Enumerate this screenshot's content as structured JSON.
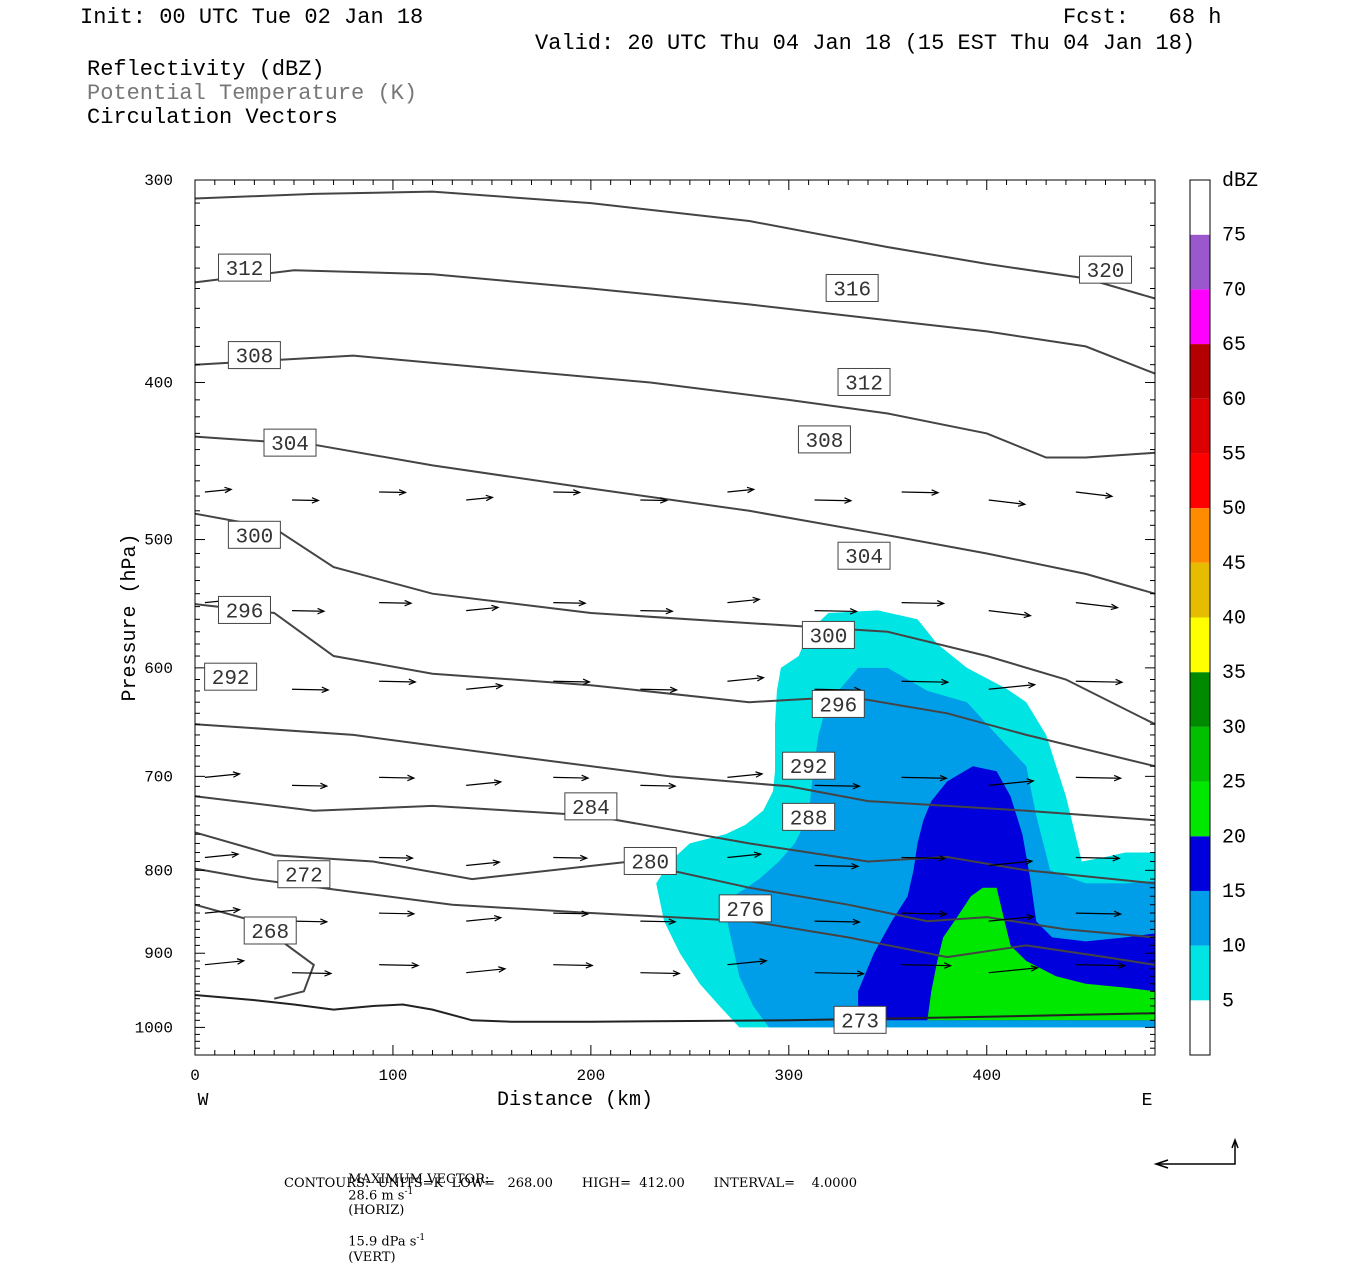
{
  "header": {
    "init": "Init: 00 UTC Tue 02 Jan 18",
    "fcst": "Fcst:   68 h",
    "valid": "Valid: 20 UTC Thu 04 Jan 18 (15 EST Thu 04 Jan 18)",
    "field1": "Reflectivity (dBZ)",
    "field2": "Potential Temperature (K)",
    "field3": "Circulation Vectors"
  },
  "footer": {
    "max_vector_label": "MAXIMUM VECTOR:",
    "horiz_value": "28.6 m s",
    "horiz_exp": "-1",
    "horiz_tag": "(HORIZ)",
    "vert_value": "15.9 dPa s",
    "vert_exp": "-1",
    "vert_tag": "(VERT)",
    "contours": "CONTOURS:  UNITS=K  LOW=   268.00       HIGH=  412.00       INTERVAL=    4.0000"
  },
  "chart_data": {
    "type": "cross-section",
    "xlabel": "Distance (km)",
    "ylabel": "Pressure (hPa)",
    "x_end_labels": [
      "W",
      "E"
    ],
    "xlim": [
      0,
      485
    ],
    "ylim": [
      300,
      1040
    ],
    "y_log_scale": true,
    "xticks": [
      0,
      100,
      200,
      300,
      400
    ],
    "yticks": [
      300,
      400,
      500,
      600,
      700,
      800,
      900,
      1000
    ],
    "colorbar": {
      "title": "dBZ",
      "levels": [
        5,
        10,
        15,
        20,
        25,
        30,
        35,
        40,
        45,
        50,
        55,
        60,
        65,
        70,
        75
      ],
      "colors": [
        "#ffffff",
        "#00e4e4",
        "#009ee8",
        "#0000dc",
        "#00e800",
        "#00c000",
        "#008a00",
        "#ffff00",
        "#e6bc00",
        "#ff8c00",
        "#ff0000",
        "#dc0000",
        "#b40000",
        "#ff00ff",
        "#9a58cc",
        "#ffffff"
      ]
    },
    "reflectivity_regions": [
      {
        "min_dbz": 5,
        "color": "#00e4e4",
        "points": [
          [
            233,
            815
          ],
          [
            240,
            790
          ],
          [
            250,
            770
          ],
          [
            268,
            760
          ],
          [
            278,
            750
          ],
          [
            287,
            735
          ],
          [
            292,
            715
          ],
          [
            293,
            695
          ],
          [
            293,
            670
          ],
          [
            293,
            650
          ],
          [
            294,
            620
          ],
          [
            296,
            600
          ],
          [
            305,
            590
          ],
          [
            310,
            570
          ],
          [
            320,
            555
          ],
          [
            345,
            553
          ],
          [
            365,
            560
          ],
          [
            375,
            580
          ],
          [
            390,
            600
          ],
          [
            410,
            618
          ],
          [
            420,
            630
          ],
          [
            430,
            660
          ],
          [
            440,
            720
          ],
          [
            448,
            790
          ],
          [
            460,
            785
          ],
          [
            470,
            780
          ],
          [
            480,
            780
          ],
          [
            485,
            780
          ],
          [
            485,
            1000
          ],
          [
            275,
            1000
          ],
          [
            265,
            970
          ],
          [
            255,
            940
          ],
          [
            245,
            900
          ],
          [
            237,
            860
          ]
        ]
      },
      {
        "min_dbz": 10,
        "color": "#009ee8",
        "points": [
          [
            268,
            850
          ],
          [
            272,
            830
          ],
          [
            285,
            810
          ],
          [
            295,
            790
          ],
          [
            303,
            770
          ],
          [
            310,
            740
          ],
          [
            312,
            700
          ],
          [
            315,
            660
          ],
          [
            318,
            640
          ],
          [
            325,
            620
          ],
          [
            335,
            600
          ],
          [
            350,
            600
          ],
          [
            370,
            620
          ],
          [
            390,
            630
          ],
          [
            405,
            660
          ],
          [
            420,
            690
          ],
          [
            425,
            740
          ],
          [
            432,
            800
          ],
          [
            450,
            815
          ],
          [
            470,
            815
          ],
          [
            485,
            812
          ],
          [
            485,
            1000
          ],
          [
            290,
            1000
          ],
          [
            282,
            970
          ],
          [
            275,
            930
          ]
        ]
      },
      {
        "min_dbz": 15,
        "color": "#0000dc",
        "points": [
          [
            335,
            950
          ],
          [
            343,
            900
          ],
          [
            352,
            860
          ],
          [
            360,
            830
          ],
          [
            363,
            800
          ],
          [
            365,
            770
          ],
          [
            368,
            745
          ],
          [
            372,
            725
          ],
          [
            380,
            705
          ],
          [
            393,
            690
          ],
          [
            405,
            695
          ],
          [
            412,
            720
          ],
          [
            418,
            760
          ],
          [
            422,
            810
          ],
          [
            425,
            860
          ],
          [
            433,
            880
          ],
          [
            450,
            885
          ],
          [
            470,
            880
          ],
          [
            485,
            875
          ],
          [
            485,
            990
          ],
          [
            370,
            990
          ],
          [
            335,
            990
          ]
        ]
      },
      {
        "min_dbz": 20,
        "color": "#00e800",
        "points": [
          [
            370,
            990
          ],
          [
            372,
            950
          ],
          [
            375,
            910
          ],
          [
            378,
            880
          ],
          [
            385,
            855
          ],
          [
            392,
            830
          ],
          [
            398,
            820
          ],
          [
            405,
            820
          ],
          [
            408,
            850
          ],
          [
            412,
            890
          ],
          [
            420,
            910
          ],
          [
            435,
            930
          ],
          [
            450,
            940
          ],
          [
            470,
            945
          ],
          [
            485,
            950
          ],
          [
            485,
            990
          ]
        ]
      }
    ],
    "theta_labels": [
      {
        "value": "312",
        "x": 25,
        "p": 340
      },
      {
        "value": "308",
        "x": 30,
        "p": 385
      },
      {
        "value": "304",
        "x": 48,
        "p": 436
      },
      {
        "value": "300",
        "x": 30,
        "p": 497
      },
      {
        "value": "296",
        "x": 25,
        "p": 553
      },
      {
        "value": "292",
        "x": 18,
        "p": 608
      },
      {
        "value": "284",
        "x": 200,
        "p": 731
      },
      {
        "value": "280",
        "x": 230,
        "p": 790
      },
      {
        "value": "272",
        "x": 55,
        "p": 805
      },
      {
        "value": "268",
        "x": 38,
        "p": 872
      },
      {
        "value": "276",
        "x": 278,
        "p": 845
      },
      {
        "value": "316",
        "x": 332,
        "p": 350
      },
      {
        "value": "312",
        "x": 338,
        "p": 400
      },
      {
        "value": "308",
        "x": 318,
        "p": 434
      },
      {
        "value": "304",
        "x": 338,
        "p": 512
      },
      {
        "value": "300",
        "x": 320,
        "p": 573
      },
      {
        "value": "296",
        "x": 325,
        "p": 632
      },
      {
        "value": "292",
        "x": 310,
        "p": 690
      },
      {
        "value": "288",
        "x": 310,
        "p": 742
      },
      {
        "value": "320",
        "x": 460,
        "p": 341
      },
      {
        "value": "273",
        "x": 336,
        "p": 990
      }
    ],
    "surface_pressure": [
      [
        0,
        955
      ],
      [
        30,
        962
      ],
      [
        50,
        968
      ],
      [
        70,
        975
      ],
      [
        90,
        970
      ],
      [
        105,
        968
      ],
      [
        120,
        975
      ],
      [
        140,
        990
      ],
      [
        160,
        992
      ],
      [
        200,
        992
      ],
      [
        300,
        990
      ],
      [
        400,
        985
      ],
      [
        485,
        980
      ]
    ],
    "footer_arrow": "reference vector"
  }
}
